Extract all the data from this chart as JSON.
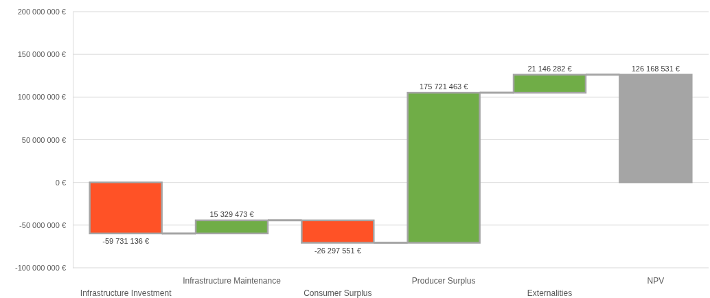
{
  "chart_data": {
    "type": "bar",
    "categories": [
      "Infrastructure Investment",
      "Infrastructure Maintenance",
      "Consumer Surplus",
      "Producer Surplus",
      "Externalities",
      "NPV"
    ],
    "values": [
      -59731136,
      15329473,
      -26297551,
      175721463,
      21146282,
      126168531
    ],
    "base": [
      0,
      -59731136,
      -44401663,
      -70699214,
      105022249,
      0
    ],
    "colors": [
      "#ff5226",
      "#70ad47",
      "#ff5226",
      "#70ad47",
      "#70ad47",
      "#a5a5a5"
    ],
    "value_labels": [
      "-59 731 136 €",
      "15 329 473 €",
      "-26 297 551 €",
      "175 721 463 €",
      "21 146 282 €",
      "126 168 531 €"
    ],
    "ylim": [
      -100000000,
      200000000
    ],
    "yticks": [
      {
        "value": -100000000,
        "label": "-100 000 000 €"
      },
      {
        "value": -50000000,
        "label": "-50 000 000 €"
      },
      {
        "value": 0,
        "label": "0 €"
      },
      {
        "value": 50000000,
        "label": "50 000 000 €"
      },
      {
        "value": 100000000,
        "label": "100 000 000 €"
      },
      {
        "value": 150000000,
        "label": "150 000 000 €"
      },
      {
        "value": 200000000,
        "label": "200 000 000 €"
      }
    ],
    "grid": "y"
  }
}
